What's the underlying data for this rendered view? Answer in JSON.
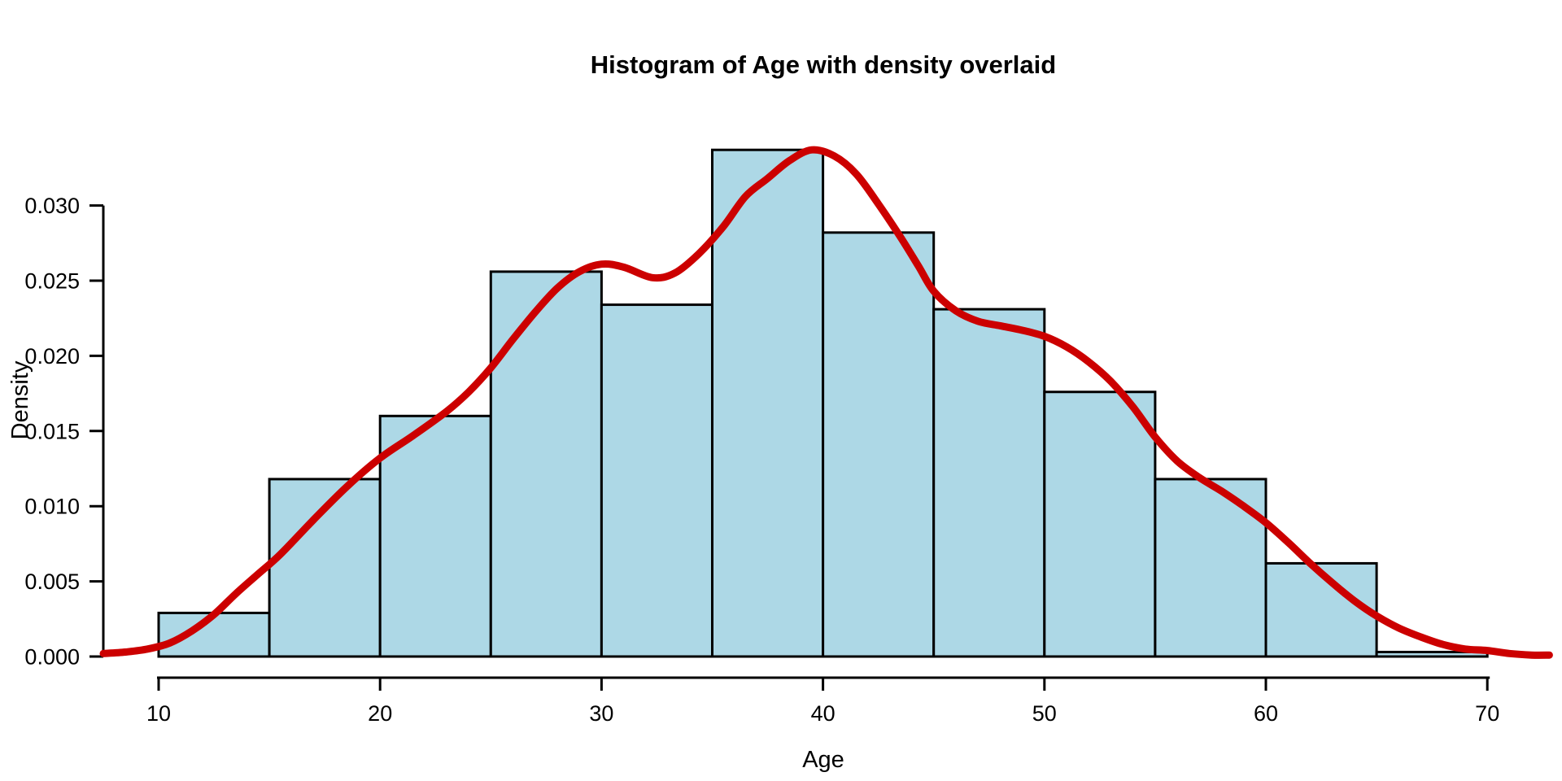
{
  "chart_data": {
    "type": "bar",
    "subtype": "histogram_with_density_overlay",
    "title": "Histogram of Age with density overlaid",
    "xlabel": "Age",
    "ylabel": "Density",
    "grid": false,
    "legend": "none",
    "x_axis": {
      "ticks": [
        10,
        20,
        30,
        40,
        50,
        60,
        70
      ],
      "tick_labels": [
        "10",
        "20",
        "30",
        "40",
        "50",
        "60",
        "70"
      ]
    },
    "y_axis": {
      "ticks": [
        0.0,
        0.005,
        0.01,
        0.015,
        0.02,
        0.025,
        0.03
      ],
      "tick_labels": [
        "0.000",
        "0.005",
        "0.010",
        "0.015",
        "0.020",
        "0.025",
        "0.030"
      ],
      "ylim": [
        0,
        0.0337
      ]
    },
    "histogram": {
      "bin_width": 5,
      "bins": [
        {
          "from": 10,
          "to": 15,
          "density": 0.0029
        },
        {
          "from": 15,
          "to": 20,
          "density": 0.0118
        },
        {
          "from": 20,
          "to": 25,
          "density": 0.016
        },
        {
          "from": 25,
          "to": 30,
          "density": 0.0256
        },
        {
          "from": 30,
          "to": 35,
          "density": 0.0234
        },
        {
          "from": 35,
          "to": 40,
          "density": 0.0337
        },
        {
          "from": 40,
          "to": 45,
          "density": 0.0282
        },
        {
          "from": 45,
          "to": 50,
          "density": 0.0231
        },
        {
          "from": 50,
          "to": 55,
          "density": 0.0176
        },
        {
          "from": 55,
          "to": 60,
          "density": 0.0118
        },
        {
          "from": 60,
          "to": 65,
          "density": 0.0062
        },
        {
          "from": 65,
          "to": 70,
          "density": 0.0003
        }
      ]
    },
    "density_curve": {
      "points": [
        [
          7.5,
          0.0002
        ],
        [
          8.5,
          0.0003
        ],
        [
          9.5,
          0.0005
        ],
        [
          10.5,
          0.0009
        ],
        [
          11.5,
          0.0017
        ],
        [
          12.5,
          0.0028
        ],
        [
          13.5,
          0.0042
        ],
        [
          14.5,
          0.0055
        ],
        [
          15.5,
          0.0068
        ],
        [
          17,
          0.0091
        ],
        [
          18.5,
          0.0113
        ],
        [
          20,
          0.0132
        ],
        [
          21.5,
          0.0147
        ],
        [
          23,
          0.0163
        ],
        [
          24,
          0.0176
        ],
        [
          25,
          0.0192
        ],
        [
          26,
          0.0211
        ],
        [
          27,
          0.0229
        ],
        [
          28,
          0.0245
        ],
        [
          29,
          0.0256
        ],
        [
          30,
          0.0261
        ],
        [
          31,
          0.0259
        ],
        [
          32.3,
          0.0252
        ],
        [
          33.3,
          0.0255
        ],
        [
          34.4,
          0.0268
        ],
        [
          35.5,
          0.0286
        ],
        [
          36.5,
          0.0306
        ],
        [
          37.5,
          0.0318
        ],
        [
          38.5,
          0.033
        ],
        [
          39.5,
          0.0337
        ],
        [
          40.5,
          0.0333
        ],
        [
          41.5,
          0.0321
        ],
        [
          42.5,
          0.0301
        ],
        [
          43.5,
          0.0279
        ],
        [
          44.3,
          0.026
        ],
        [
          45,
          0.0243
        ],
        [
          46,
          0.023
        ],
        [
          47,
          0.0223
        ],
        [
          48,
          0.022
        ],
        [
          49,
          0.0217
        ],
        [
          50,
          0.0213
        ],
        [
          51,
          0.0206
        ],
        [
          52,
          0.0196
        ],
        [
          53,
          0.0183
        ],
        [
          54,
          0.0166
        ],
        [
          55,
          0.0146
        ],
        [
          56,
          0.013
        ],
        [
          57,
          0.0119
        ],
        [
          58,
          0.011
        ],
        [
          59,
          0.01
        ],
        [
          60,
          0.0089
        ],
        [
          61,
          0.0076
        ],
        [
          62,
          0.0062
        ],
        [
          63,
          0.0049
        ],
        [
          64,
          0.0037
        ],
        [
          65,
          0.0027
        ],
        [
          66,
          0.0019
        ],
        [
          67,
          0.0013
        ],
        [
          68,
          0.0008
        ],
        [
          69,
          0.0005
        ],
        [
          70,
          0.0004
        ],
        [
          71,
          0.0002
        ],
        [
          72,
          0.0001
        ],
        [
          72.8,
          0.0001
        ]
      ]
    },
    "colors": {
      "bar_fill": "#ADD8E6",
      "bar_border": "#000000",
      "curve": "#CC0000",
      "axis": "#000000",
      "text": "#000000",
      "background": "#FFFFFF"
    }
  }
}
